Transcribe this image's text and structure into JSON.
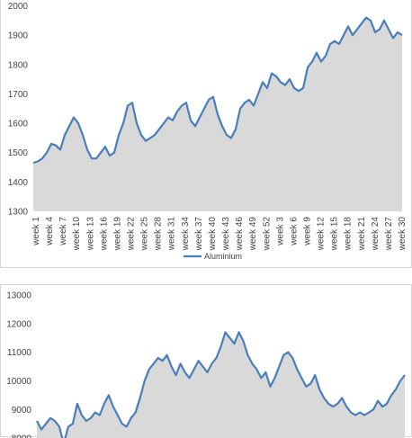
{
  "chart_data": [
    {
      "type": "area",
      "title": "",
      "xlabel": "",
      "ylabel": "",
      "ylim": [
        1300,
        2000
      ],
      "yticks": [
        1300,
        1400,
        1500,
        1600,
        1700,
        1800,
        1900,
        2000
      ],
      "x_tick_labels": [
        "week  1",
        "week  4",
        "week  7",
        "week  10",
        "week  13",
        "week  16",
        "week  19",
        "week  22",
        "week  25",
        "week  28",
        "week  31",
        "week  34",
        "week  37",
        "week  40",
        "week  43",
        "week  46",
        "week  49",
        "week  52",
        "week  3",
        "week  6",
        "week  9",
        "week  12",
        "week  15",
        "week  18",
        "week  21",
        "week  24",
        "week  27",
        "week  30"
      ],
      "legend": {
        "position": "bottom",
        "entries": [
          "Aluminium"
        ]
      },
      "series": [
        {
          "name": "Aluminium",
          "color": "#4a7ebb",
          "fill": "#d9d9d9",
          "x": [
            0,
            1,
            2,
            3,
            4,
            5,
            6,
            7,
            8,
            9,
            10,
            11,
            12,
            13,
            14,
            15,
            16,
            17,
            18,
            19,
            20,
            21,
            22,
            23,
            24,
            25,
            26,
            27,
            28,
            29,
            30,
            31,
            32,
            33,
            34,
            35,
            36,
            37,
            38,
            39,
            40,
            41,
            42,
            43,
            44,
            45,
            46,
            47,
            48,
            49,
            50,
            51,
            52,
            53,
            54,
            55,
            56,
            57,
            58,
            59,
            60,
            61,
            62,
            63,
            64,
            65,
            66,
            67,
            68,
            69,
            70,
            71,
            72,
            73,
            74,
            75,
            76,
            77,
            78,
            79,
            80,
            81,
            82
          ],
          "values": [
            1465,
            1470,
            1480,
            1500,
            1530,
            1525,
            1510,
            1560,
            1590,
            1620,
            1600,
            1560,
            1510,
            1480,
            1480,
            1500,
            1520,
            1490,
            1500,
            1560,
            1600,
            1660,
            1670,
            1600,
            1560,
            1540,
            1550,
            1560,
            1580,
            1600,
            1620,
            1610,
            1640,
            1660,
            1670,
            1610,
            1590,
            1620,
            1650,
            1680,
            1690,
            1630,
            1590,
            1560,
            1550,
            1580,
            1650,
            1670,
            1680,
            1660,
            1700,
            1740,
            1720,
            1770,
            1760,
            1740,
            1730,
            1750,
            1720,
            1710,
            1720,
            1790,
            1810,
            1840,
            1810,
            1830,
            1870,
            1880,
            1870,
            1900,
            1930,
            1900,
            1920,
            1940,
            1960,
            1950,
            1910,
            1920,
            1950,
            1920,
            1890,
            1910,
            1900
          ]
        }
      ]
    },
    {
      "type": "area",
      "title": "",
      "xlabel": "",
      "ylabel": "",
      "ylim": [
        7500,
        13000
      ],
      "yticks": [
        8000,
        9000,
        10000,
        11000,
        12000,
        13000
      ],
      "series": [
        {
          "color": "#4a7ebb",
          "fill": "#d9d9d9",
          "x": [
            0,
            1,
            2,
            3,
            4,
            5,
            6,
            7,
            8,
            9,
            10,
            11,
            12,
            13,
            14,
            15,
            16,
            17,
            18,
            19,
            20,
            21,
            22,
            23,
            24,
            25,
            26,
            27,
            28,
            29,
            30,
            31,
            32,
            33,
            34,
            35,
            36,
            37,
            38,
            39,
            40,
            41,
            42,
            43,
            44,
            45,
            46,
            47,
            48,
            49,
            50,
            51,
            52,
            53,
            54,
            55,
            56,
            57,
            58,
            59,
            60,
            61,
            62,
            63,
            64,
            65,
            66,
            67,
            68,
            69,
            70,
            71,
            72,
            73,
            74,
            75,
            76,
            77,
            78,
            79,
            80,
            81,
            82
          ],
          "values": [
            8600,
            8300,
            8500,
            8700,
            8600,
            8400,
            7800,
            8400,
            8500,
            9200,
            8800,
            8600,
            8700,
            8900,
            8800,
            9200,
            9500,
            9100,
            8800,
            8500,
            8400,
            8700,
            8900,
            9400,
            10000,
            10400,
            10600,
            10800,
            10700,
            10900,
            10500,
            10200,
            10600,
            10300,
            10100,
            10400,
            10700,
            10500,
            10300,
            10600,
            10800,
            11200,
            11700,
            11500,
            11300,
            11700,
            11400,
            10900,
            10600,
            10400,
            10100,
            10300,
            9800,
            10100,
            10500,
            10900,
            11000,
            10800,
            10400,
            10100,
            9800,
            9900,
            10200,
            9700,
            9400,
            9200,
            9100,
            9200,
            9400,
            9100,
            8900,
            8800,
            8900,
            8800,
            8900,
            9000,
            9300,
            9100,
            9200,
            9500,
            9700,
            10000,
            10200
          ]
        }
      ]
    }
  ]
}
